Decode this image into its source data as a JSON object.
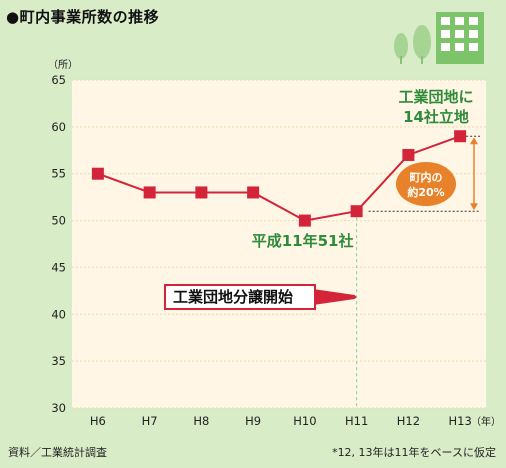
{
  "header": {
    "title": "●町内事業所数の推移"
  },
  "footer": {
    "source": "資料／工業統計調査",
    "note": "*12, 13年は11年をベースに仮定"
  },
  "chart_data": {
    "type": "line",
    "categories": [
      "H6",
      "H7",
      "H8",
      "H9",
      "H10",
      "H11",
      "H12",
      "H13"
    ],
    "values": [
      55,
      53,
      53,
      53,
      50,
      51,
      57,
      59
    ],
    "y_unit": "（所）",
    "x_unit": "（年）",
    "ylim": [
      30,
      65
    ],
    "yticks": [
      30,
      35,
      40,
      45,
      50,
      55,
      60,
      65
    ],
    "grid": true,
    "annotations": {
      "top_right_line1": "工業団地に",
      "top_right_line2": "14社立地",
      "mid_label": "平成11年51社",
      "badge_line1": "町内の",
      "badge_line2": "約20%",
      "banner": "工業団地分譲開始"
    },
    "colors": {
      "line": "#d3243a",
      "marker": "#d3243a",
      "plot_bg": "#fff6e6",
      "grid": "#f0d8a8",
      "annotation_green": "#2e8b3a",
      "badge": "#e8822a",
      "dashed_vertical": "#7fcf9a",
      "building": "#7cc36a",
      "trees": "#a6d493"
    }
  }
}
